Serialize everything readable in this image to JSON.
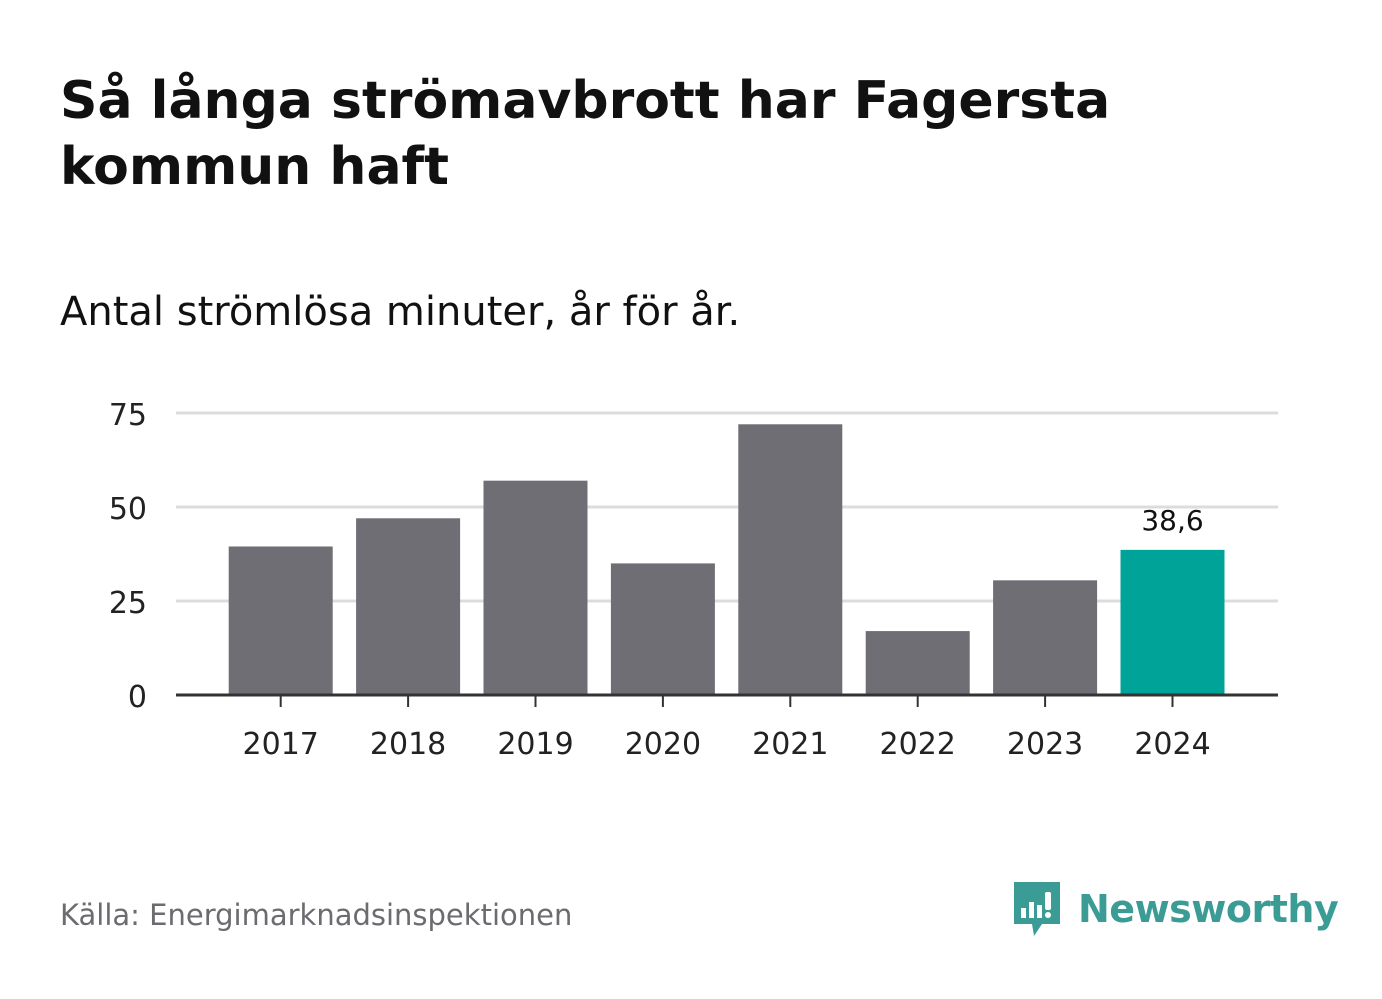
{
  "header": {
    "title": "Så långa strömavbrott har Fagersta kommun haft",
    "subtitle": "Antal strömlösa minuter, år för år."
  },
  "footer": {
    "source": "Källa: Energimarknadsinspektionen",
    "brand": "Newsworthy",
    "brand_icon": "newsworthy-logo-icon"
  },
  "colors": {
    "bar": "#6f6e74",
    "highlight": "#00a398",
    "grid": "#dcdcdc",
    "axis": "#333333",
    "brand": "#3a9c94"
  },
  "chart_data": {
    "type": "bar",
    "categories": [
      "2017",
      "2018",
      "2019",
      "2020",
      "2021",
      "2022",
      "2023",
      "2024"
    ],
    "values": [
      39.5,
      47,
      57,
      35,
      72,
      17,
      30.5,
      38.6
    ],
    "highlight_index": 7,
    "highlight_label": "38,6",
    "title": "Så långa strömavbrott har Fagersta kommun haft",
    "subtitle": "Antal strömlösa minuter, år för år.",
    "xlabel": "",
    "ylabel": "",
    "ylim": [
      0,
      75
    ],
    "yticks": [
      0,
      25,
      50,
      75
    ],
    "grid": true,
    "legend": "none"
  }
}
